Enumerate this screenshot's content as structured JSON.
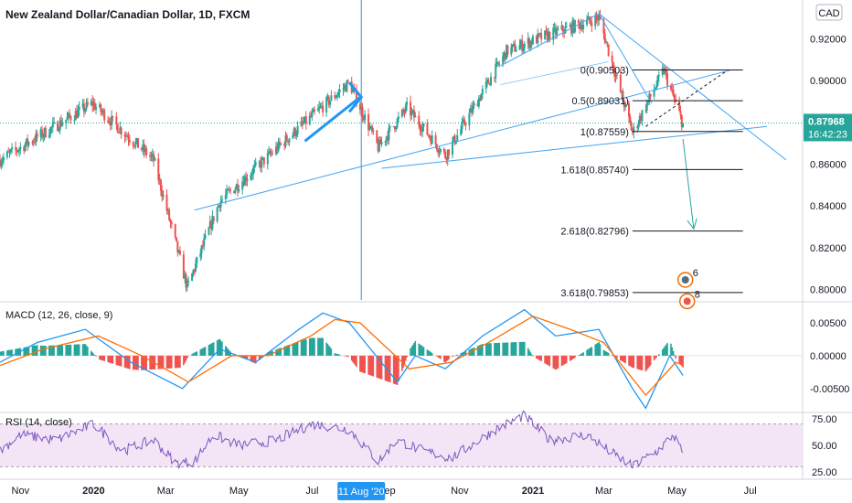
{
  "header": {
    "title": "New Zealand Dollar/Canadian Dollar, 1D, FXCM",
    "currency_badge": "CAD"
  },
  "chart_data": [
    {
      "type": "candlestick",
      "title": "New Zealand Dollar/Canadian Dollar, 1D, FXCM",
      "ylim": [
        0.795,
        0.935
      ],
      "y_ticks": [
        "0.92000",
        "0.90000",
        "0.88000",
        "0.86000",
        "0.84000",
        "0.82000",
        "0.80000"
      ],
      "y_tick_values": [
        0.92,
        0.9,
        0.88,
        0.86,
        0.84,
        0.82,
        0.8
      ],
      "x_ticks": [
        "Nov",
        "2020",
        "Mar",
        "May",
        "Jul",
        "Sep",
        "Nov",
        "2021",
        "Mar",
        "May",
        "Jul"
      ],
      "x_tick_dates": [
        "2019-11-01",
        "2020-01-01",
        "2020-03-01",
        "2020-05-01",
        "2020-07-01",
        "2020-09-01",
        "2020-11-01",
        "2021-01-01",
        "2021-03-01",
        "2021-05-01",
        "2021-07-01"
      ],
      "x_range": [
        "2019-10-15",
        "2021-07-31"
      ],
      "last_price": "0.87968",
      "countdown": "16:42:23",
      "crosshair_date": "11 Aug '20",
      "key_prices": [
        {
          "date": "2019-10-15",
          "value": 0.862
        },
        {
          "date": "2019-12-31",
          "value": 0.889
        },
        {
          "date": "2020-02-20",
          "value": 0.862
        },
        {
          "date": "2020-03-19",
          "value": 0.801
        },
        {
          "date": "2020-04-15",
          "value": 0.842
        },
        {
          "date": "2020-06-10",
          "value": 0.872
        },
        {
          "date": "2020-08-01",
          "value": 0.899
        },
        {
          "date": "2020-08-25",
          "value": 0.868
        },
        {
          "date": "2020-09-18",
          "value": 0.887
        },
        {
          "date": "2020-10-20",
          "value": 0.864
        },
        {
          "date": "2020-12-10",
          "value": 0.914
        },
        {
          "date": "2021-01-05",
          "value": 0.92
        },
        {
          "date": "2021-02-25",
          "value": 0.93
        },
        {
          "date": "2021-03-25",
          "value": 0.875
        },
        {
          "date": "2021-04-20",
          "value": 0.905
        },
        {
          "date": "2021-05-06",
          "value": 0.879
        }
      ],
      "fib_levels": [
        {
          "label": "0(0.90503)",
          "value": 0.90503
        },
        {
          "label": "0.5(0.89031)",
          "value": 0.89031
        },
        {
          "label": "1(0.87559)",
          "value": 0.87559
        },
        {
          "label": "1.618(0.85740)",
          "value": 0.8574
        },
        {
          "label": "2.618(0.82796)",
          "value": 0.82796
        },
        {
          "label": "3.618(0.79853)",
          "value": 0.79853
        }
      ],
      "markers": [
        "6",
        "8"
      ],
      "colors": {
        "up": "#26a69a",
        "down": "#ef5350",
        "trend": "#42a5f5",
        "arrow": "#2196f3"
      }
    },
    {
      "type": "line",
      "title": "MACD (12, 26, close, 9)",
      "ylim": [
        -0.0085,
        0.0075
      ],
      "y_ticks": [
        "0.00500",
        "0.00000",
        "-0.00500"
      ],
      "y_tick_values": [
        0.005,
        0.0,
        -0.005
      ],
      "series": [
        {
          "color": "#2196f3",
          "points": [
            [
              "2019-10-15",
              -0.001
            ],
            [
              "2019-11-15",
              0.002
            ],
            [
              "2019-12-25",
              0.004
            ],
            [
              "2020-02-01",
              -0.001
            ],
            [
              "2020-03-15",
              -0.005
            ],
            [
              "2020-04-15",
              0.001
            ],
            [
              "2020-05-15",
              -0.001
            ],
            [
              "2020-06-20",
              0.004
            ],
            [
              "2020-07-10",
              0.0065
            ],
            [
              "2020-08-01",
              0.005
            ],
            [
              "2020-09-10",
              -0.004
            ],
            [
              "2020-09-25",
              0.0
            ],
            [
              "2020-10-20",
              -0.002
            ],
            [
              "2020-11-20",
              0.003
            ],
            [
              "2020-12-25",
              0.007
            ],
            [
              "2021-01-20",
              0.003
            ],
            [
              "2021-02-25",
              0.004
            ],
            [
              "2021-03-25",
              -0.005
            ],
            [
              "2021-04-05",
              -0.008
            ],
            [
              "2021-04-25",
              0.0
            ],
            [
              "2021-05-06",
              -0.003
            ]
          ]
        },
        {
          "color": "#ff6d00",
          "points": [
            [
              "2019-10-15",
              -0.0015
            ],
            [
              "2019-11-20",
              0.001
            ],
            [
              "2020-01-05",
              0.003
            ],
            [
              "2020-02-10",
              0.0
            ],
            [
              "2020-03-20",
              -0.004
            ],
            [
              "2020-04-25",
              0.0
            ],
            [
              "2020-05-25",
              0.0
            ],
            [
              "2020-06-30",
              0.003
            ],
            [
              "2020-07-20",
              0.0055
            ],
            [
              "2020-08-10",
              0.005
            ],
            [
              "2020-09-20",
              -0.002
            ],
            [
              "2020-10-25",
              -0.001
            ],
            [
              "2020-11-25",
              0.002
            ],
            [
              "2021-01-01",
              0.006
            ],
            [
              "2021-02-01",
              0.004
            ],
            [
              "2021-03-01",
              0.002
            ],
            [
              "2021-04-05",
              -0.006
            ],
            [
              "2021-04-30",
              -0.001
            ],
            [
              "2021-05-06",
              -0.0015
            ]
          ]
        }
      ]
    },
    {
      "type": "line",
      "title": "RSI (14, close)",
      "ylim": [
        20,
        80
      ],
      "y_ticks": [
        "75.00",
        "50.00",
        "25.00"
      ],
      "y_tick_values": [
        75,
        50,
        25
      ],
      "band": [
        30,
        70
      ],
      "series": [
        {
          "color": "#7e57c2",
          "points": [
            [
              "2019-10-15",
              45
            ],
            [
              "2019-11-01",
              60
            ],
            [
              "2019-12-01",
              55
            ],
            [
              "2020-01-01",
              70
            ],
            [
              "2020-01-25",
              45
            ],
            [
              "2020-02-20",
              55
            ],
            [
              "2020-03-10",
              33
            ],
            [
              "2020-03-25",
              35
            ],
            [
              "2020-04-10",
              60
            ],
            [
              "2020-05-01",
              50
            ],
            [
              "2020-06-01",
              55
            ],
            [
              "2020-07-01",
              70
            ],
            [
              "2020-08-01",
              65
            ],
            [
              "2020-08-25",
              35
            ],
            [
              "2020-09-10",
              55
            ],
            [
              "2020-10-01",
              45
            ],
            [
              "2020-10-25",
              38
            ],
            [
              "2020-12-01",
              65
            ],
            [
              "2020-12-25",
              78
            ],
            [
              "2021-01-15",
              55
            ],
            [
              "2021-02-15",
              60
            ],
            [
              "2021-03-05",
              45
            ],
            [
              "2021-03-25",
              30
            ],
            [
              "2021-04-15",
              45
            ],
            [
              "2021-04-28",
              60
            ],
            [
              "2021-05-06",
              42
            ]
          ]
        }
      ]
    }
  ]
}
